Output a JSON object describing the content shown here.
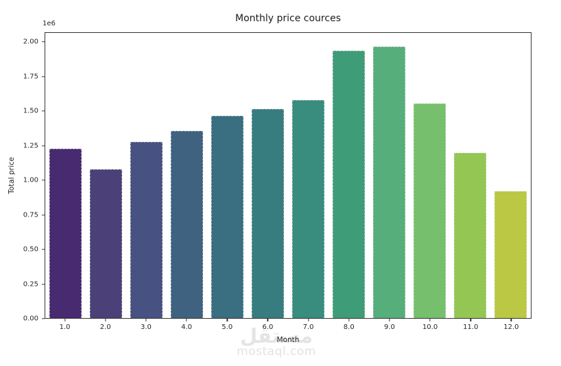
{
  "chart_data": {
    "type": "bar",
    "title": "Monthly price cources",
    "xlabel": "Month",
    "ylabel": "Total price",
    "offset_text": "1e6",
    "categories": [
      "1.0",
      "2.0",
      "3.0",
      "4.0",
      "5.0",
      "6.0",
      "7.0",
      "8.0",
      "9.0",
      "10.0",
      "11.0",
      "12.0"
    ],
    "values_1e6": [
      1.23,
      1.08,
      1.28,
      1.36,
      1.47,
      1.52,
      1.58,
      1.94,
      1.97,
      1.56,
      1.2,
      0.92
    ],
    "bar_colors": [
      "#472a70",
      "#4c4078",
      "#475182",
      "#3f6280",
      "#3a6e81",
      "#377d80",
      "#388d7e",
      "#3f9c79",
      "#56ae7b",
      "#76c06d",
      "#94c654",
      "#bac844"
    ],
    "ylim": [
      0,
      2.07
    ],
    "yticks": [
      "0.00",
      "0.25",
      "0.50",
      "0.75",
      "1.00",
      "1.25",
      "1.50",
      "1.75",
      "2.00"
    ],
    "grid": false,
    "legend": null,
    "colormap": "viridis"
  },
  "watermark": {
    "logo": "مستقل",
    "text": "mostaql.com"
  },
  "style": {
    "spine_color": "#333333",
    "text_color": "#262626",
    "background": "#ffffff"
  }
}
